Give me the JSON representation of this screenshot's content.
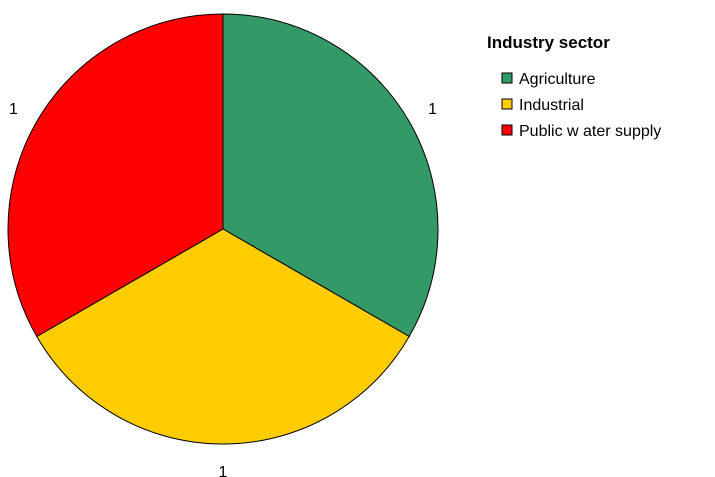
{
  "chart_data": {
    "type": "pie",
    "title": "",
    "categories": [
      "Agriculture",
      "Industrial",
      "Public w ater supply"
    ],
    "values": [
      1,
      1,
      1
    ],
    "data_labels": [
      "1",
      "1",
      "1"
    ],
    "colors": [
      "#339966",
      "#FFCC00",
      "#FF0000"
    ],
    "legend": {
      "title": "Industry sector",
      "placement": "right",
      "entries": [
        "Agriculture",
        "Industrial",
        "Public w ater supply"
      ]
    },
    "start_angle": "12 o'clock",
    "direction": "clockwise"
  }
}
